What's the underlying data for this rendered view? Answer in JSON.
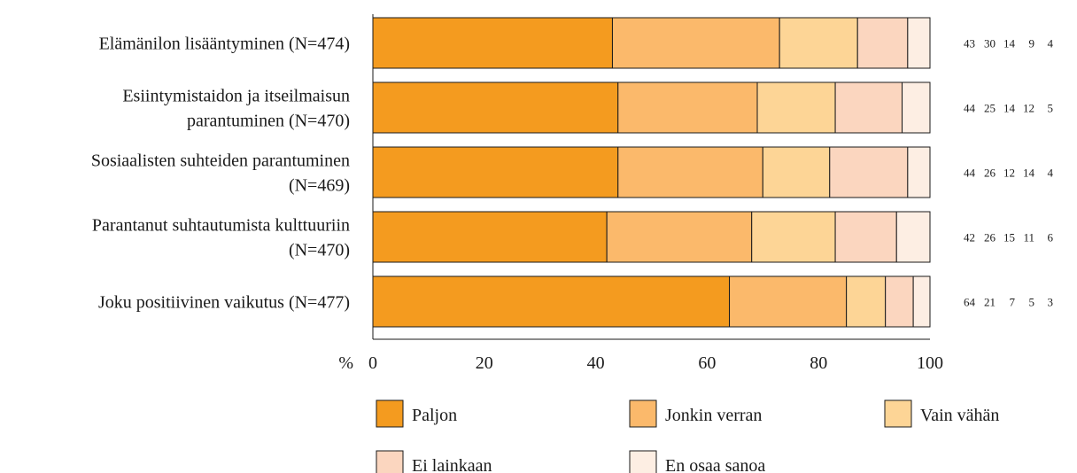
{
  "chart_data": {
    "type": "bar",
    "orientation": "horizontal",
    "stacked": true,
    "title": "",
    "xlabel": "%",
    "xlim": [
      0,
      100
    ],
    "xticks": [
      "0",
      "20",
      "40",
      "60",
      "80",
      "100"
    ],
    "grid": false,
    "legend_placement": "bottom",
    "categories": [
      [
        "Elämänilon lisääntyminen (N=474)"
      ],
      [
        "Esiintymistaidon ja itseilmaisun",
        "parantuminen (N=470)"
      ],
      [
        "Sosiaalisten suhteiden parantuminen",
        "(N=469)"
      ],
      [
        "Parantanut suhtautumista kulttuuriin",
        "(N=470)"
      ],
      [
        "Joku positiivinen vaikutus (N=477)"
      ]
    ],
    "series": [
      {
        "name": "Paljon",
        "color": "#f49b1f",
        "values": [
          43,
          44,
          44,
          42,
          64
        ]
      },
      {
        "name": "Jonkin verran",
        "color": "#fbb96b",
        "values": [
          30,
          25,
          26,
          26,
          21
        ]
      },
      {
        "name": "Vain vähän",
        "color": "#fdd596",
        "values": [
          14,
          14,
          12,
          15,
          7
        ]
      },
      {
        "name": "Ei lainkaan",
        "color": "#fbd6bf",
        "values": [
          9,
          12,
          14,
          11,
          5
        ]
      },
      {
        "name": "En osaa sanoa",
        "color": "#fdeee3",
        "values": [
          4,
          5,
          4,
          6,
          3
        ]
      }
    ]
  }
}
